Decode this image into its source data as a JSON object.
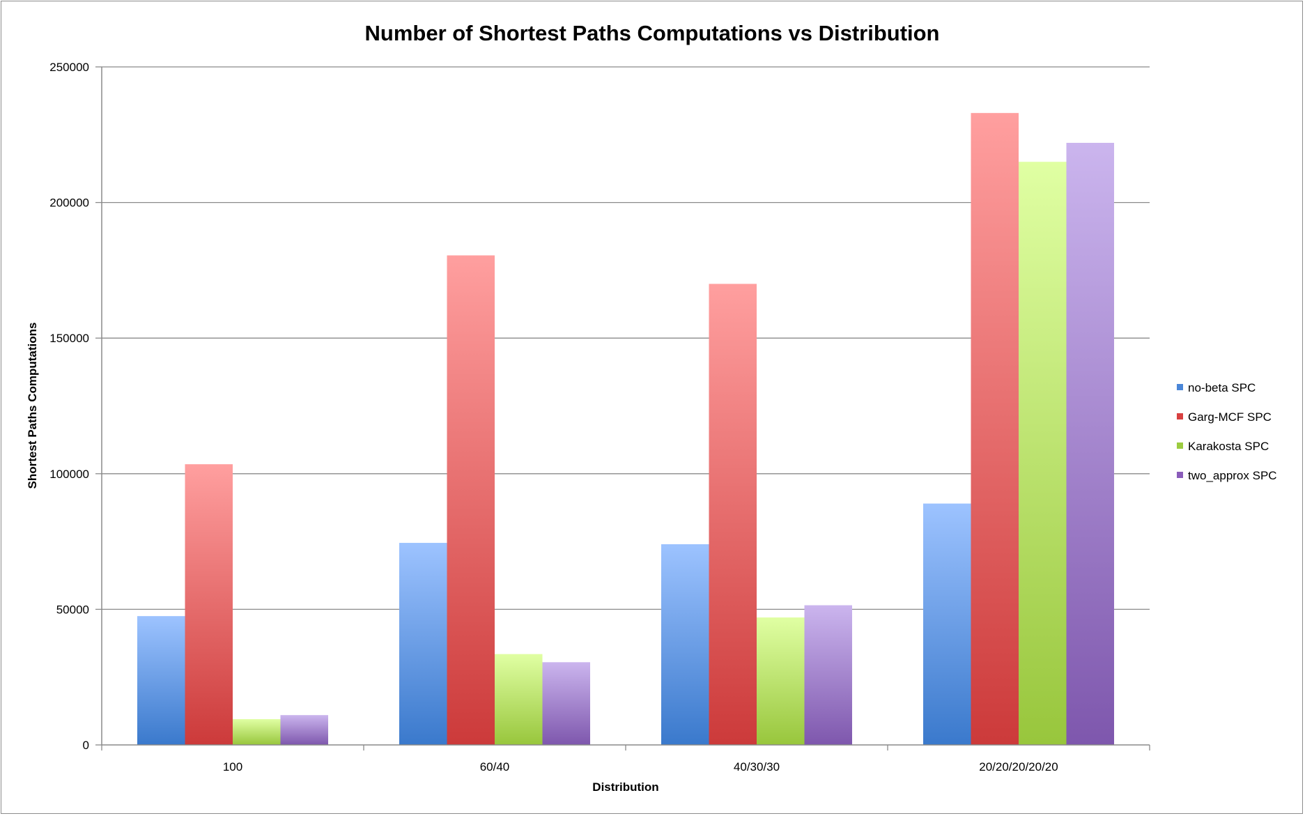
{
  "chart_data": {
    "type": "bar",
    "title": "Number of Shortest Paths Computations vs Distribution",
    "xlabel": "Distribution",
    "ylabel": "Shortest Paths Computations",
    "categories": [
      "100",
      "60/40",
      "40/30/30",
      "20/20/20/20/20"
    ],
    "ylim": [
      0,
      250000
    ],
    "yticks": [
      0,
      50000,
      100000,
      150000,
      200000,
      250000
    ],
    "grid": true,
    "legend_position": "right",
    "series": [
      {
        "name": "no-beta SPC",
        "values": [
          47500,
          74500,
          74000,
          89000
        ],
        "color_top": "#9dc3ff",
        "color_bottom": "#3a79cc",
        "legend_color": "#4a86d8"
      },
      {
        "name": "Garg-MCF SPC",
        "values": [
          103500,
          180500,
          170000,
          233000
        ],
        "color_top": "#ff9f9f",
        "color_bottom": "#cc3a3a",
        "legend_color": "#d84040"
      },
      {
        "name": "Karakosta SPC",
        "values": [
          9500,
          33500,
          47000,
          215000
        ],
        "color_top": "#e0ffa3",
        "color_bottom": "#98c63c",
        "legend_color": "#9ccc40"
      },
      {
        "name": "two_approx SPC",
        "values": [
          11000,
          30500,
          51500,
          222000
        ],
        "color_top": "#cbb5ee",
        "color_bottom": "#7e57ad",
        "legend_color": "#8a5cba"
      }
    ]
  }
}
